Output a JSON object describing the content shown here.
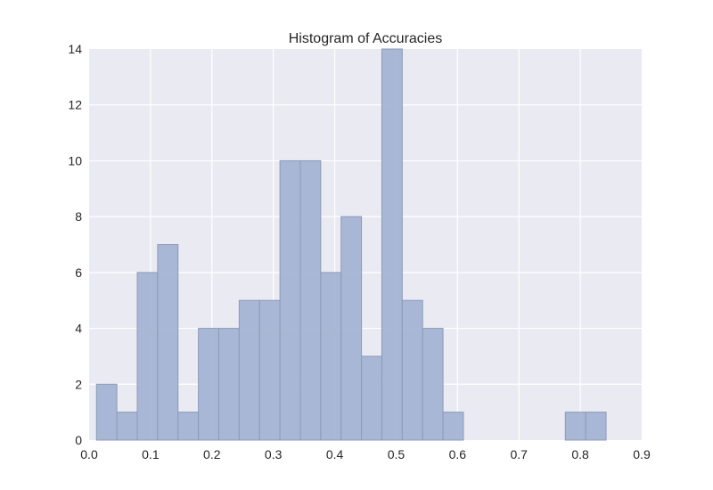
{
  "chart_data": {
    "type": "bar",
    "title": "Histogram of Accuracies",
    "xlabel": "",
    "ylabel": "",
    "xlim": [
      0.0,
      0.9
    ],
    "ylim": [
      0,
      14
    ],
    "x_ticks": [
      "0.0",
      "0.1",
      "0.2",
      "0.3",
      "0.4",
      "0.5",
      "0.6",
      "0.7",
      "0.8",
      "0.9"
    ],
    "y_ticks": [
      "0",
      "2",
      "4",
      "6",
      "8",
      "10",
      "12",
      "14"
    ],
    "grid": true,
    "legend": "none",
    "bin_start": 0.012,
    "bin_width": 0.0332,
    "counts": [
      2,
      1,
      6,
      7,
      1,
      4,
      4,
      5,
      5,
      10,
      10,
      6,
      8,
      3,
      14,
      5,
      4,
      1,
      0,
      0,
      0,
      0,
      0,
      1,
      1
    ],
    "colors": {
      "background": "#eaeaf2",
      "grid": "#ffffff",
      "bar_fill": "#a5b4d4",
      "bar_edge": "#8d9bb8"
    }
  }
}
